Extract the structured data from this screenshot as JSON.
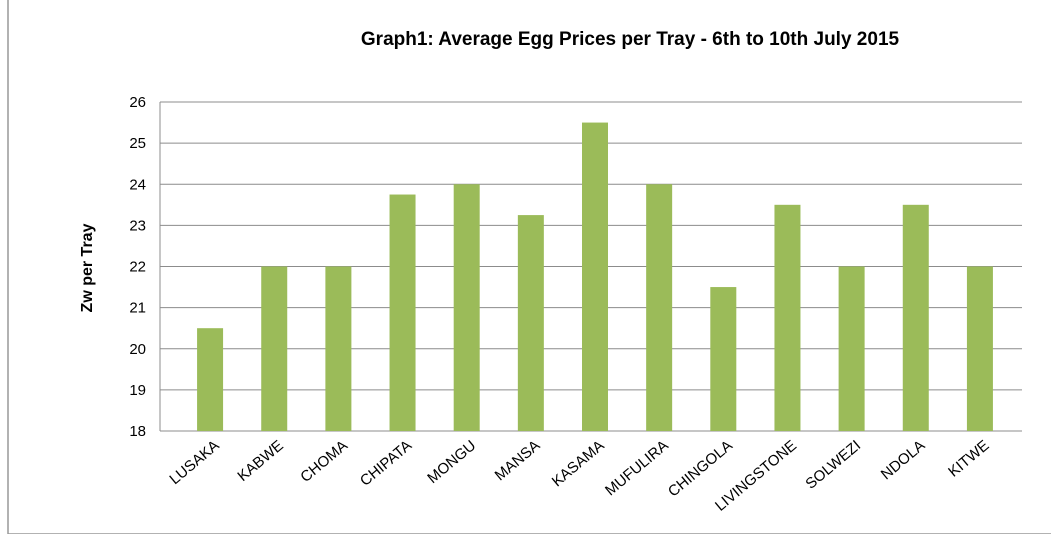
{
  "chart_data": {
    "type": "bar",
    "title": "Graph1: Average Egg Prices per Tray -  6th to 10th July 2015",
    "y_label": "Zw per Tray",
    "categories": [
      "LUSAKA",
      "KABWE",
      "CHOMA",
      "CHIPATA",
      "MONGU",
      "MANSA",
      "KASAMA",
      "MUFULIRA",
      "CHINGOLA",
      "LIVINGSTONE",
      "SOLWEZI",
      "NDOLA",
      "KITWE"
    ],
    "values": [
      20.5,
      22,
      22,
      23.75,
      24,
      23.25,
      25.5,
      24,
      21.5,
      23.5,
      22,
      23.5,
      22
    ],
    "color": "#9bbb59",
    "ylim": [
      18,
      26
    ],
    "yticks": [
      18,
      19,
      20,
      21,
      22,
      23,
      24,
      25,
      26
    ],
    "grid": true
  }
}
